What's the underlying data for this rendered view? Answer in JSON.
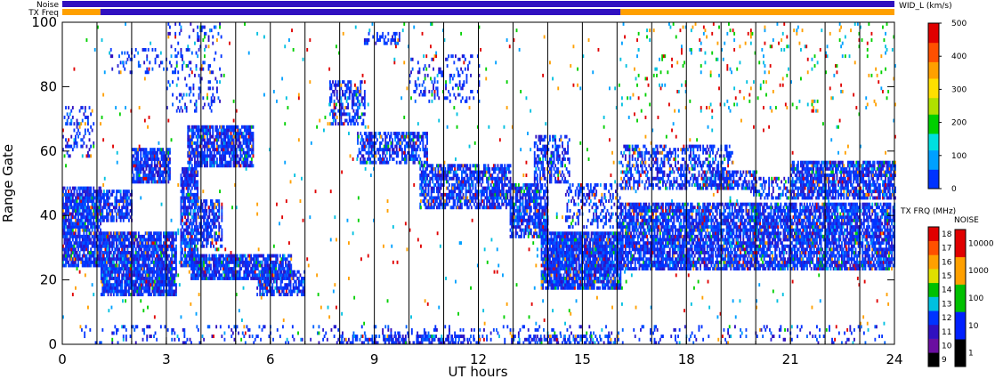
{
  "chart_data": {
    "type": "heatmap",
    "xlabel": "UT hours",
    "ylabel": "Range Gate",
    "xlim": [
      0,
      24
    ],
    "ylim": [
      0,
      100
    ],
    "xticks": [
      "0",
      "3",
      "6",
      "9",
      "12",
      "15",
      "18",
      "21",
      "24"
    ],
    "yticks": [
      "0",
      "20",
      "40",
      "60",
      "80",
      "100"
    ],
    "grid_x_hours": [
      1,
      2,
      3,
      4,
      5,
      6,
      7,
      8,
      9,
      10,
      11,
      12,
      13,
      14,
      15,
      16,
      17,
      18,
      19,
      20,
      21,
      22,
      23
    ],
    "top_bar_labels": {
      "noise": "Noise",
      "freq": "TX Freq"
    },
    "colorbars": {
      "width": {
        "title": "WID_L (km/s)",
        "ticks": [
          "0",
          "100",
          "200",
          "300",
          "400",
          "500"
        ],
        "range": [
          0,
          500
        ],
        "colors": [
          "#0033ff",
          "#00a0ff",
          "#00e0e0",
          "#00d000",
          "#b0e000",
          "#ffe000",
          "#ffa000",
          "#ff5000",
          "#e00000"
        ]
      },
      "freq": {
        "title": "TX FRQ (MHz)",
        "ticks": [
          "9",
          "10",
          "11",
          "12",
          "13",
          "14",
          "15",
          "16",
          "17",
          "18"
        ],
        "colors": [
          "#000000",
          "#6a0ea0",
          "#3010c0",
          "#0033ff",
          "#00c0e0",
          "#00c000",
          "#e0e000",
          "#ffa000",
          "#ff5000",
          "#e00000"
        ]
      },
      "noise": {
        "title": "NOISE",
        "ticks": [
          "1",
          "10",
          "100",
          "1000",
          "10000"
        ],
        "colors": [
          "#000000",
          "#0020ff",
          "#00c000",
          "#ffa000",
          "#e00000"
        ]
      }
    },
    "bands": [
      {
        "t0": 0.0,
        "t1": 1.1,
        "g0": 24,
        "g1": 49,
        "density": 0.85
      },
      {
        "t0": 0.0,
        "t1": 0.9,
        "g0": 58,
        "g1": 74,
        "density": 0.25
      },
      {
        "t0": 1.1,
        "t1": 3.3,
        "g0": 15,
        "g1": 35,
        "density": 0.85
      },
      {
        "t0": 1.1,
        "t1": 2.0,
        "g0": 38,
        "g1": 48,
        "density": 0.7
      },
      {
        "t0": 2.0,
        "t1": 3.1,
        "g0": 50,
        "g1": 61,
        "density": 0.8
      },
      {
        "t0": 1.3,
        "t1": 3.0,
        "g0": 84,
        "g1": 92,
        "density": 0.15
      },
      {
        "t0": 3.4,
        "t1": 3.9,
        "g0": 24,
        "g1": 55,
        "density": 0.8
      },
      {
        "t0": 3.6,
        "t1": 5.5,
        "g0": 55,
        "g1": 68,
        "density": 0.8
      },
      {
        "t0": 3.7,
        "t1": 6.6,
        "g0": 20,
        "g1": 28,
        "density": 0.85
      },
      {
        "t0": 3.9,
        "t1": 4.6,
        "g0": 30,
        "g1": 45,
        "density": 0.6
      },
      {
        "t0": 3.0,
        "t1": 4.6,
        "g0": 72,
        "g1": 100,
        "density": 0.15
      },
      {
        "t0": 5.6,
        "t1": 7.0,
        "g0": 15,
        "g1": 23,
        "density": 0.7
      },
      {
        "t0": 7.7,
        "t1": 8.7,
        "g0": 68,
        "g1": 82,
        "density": 0.45
      },
      {
        "t0": 8.5,
        "t1": 10.5,
        "g0": 56,
        "g1": 66,
        "density": 0.55
      },
      {
        "t0": 10.3,
        "t1": 12.9,
        "g0": 42,
        "g1": 56,
        "density": 0.7
      },
      {
        "t0": 8.7,
        "t1": 9.7,
        "g0": 93,
        "g1": 97,
        "density": 0.4
      },
      {
        "t0": 10.0,
        "t1": 12.0,
        "g0": 75,
        "g1": 90,
        "density": 0.2
      },
      {
        "t0": 12.9,
        "t1": 14.0,
        "g0": 33,
        "g1": 50,
        "density": 0.75
      },
      {
        "t0": 13.8,
        "t1": 16.1,
        "g0": 17,
        "g1": 35,
        "density": 0.9
      },
      {
        "t0": 13.6,
        "t1": 14.6,
        "g0": 50,
        "g1": 65,
        "density": 0.5
      },
      {
        "t0": 14.5,
        "t1": 16.1,
        "g0": 36,
        "g1": 50,
        "density": 0.35
      },
      {
        "t0": 16.1,
        "t1": 24.0,
        "g0": 23,
        "g1": 44,
        "density": 0.78
      },
      {
        "t0": 16.1,
        "t1": 19.3,
        "g0": 48,
        "g1": 62,
        "density": 0.5
      },
      {
        "t0": 18.5,
        "t1": 20.0,
        "g0": 48,
        "g1": 54,
        "density": 0.55
      },
      {
        "t0": 21.0,
        "t1": 24.0,
        "g0": 45,
        "g1": 57,
        "density": 0.75
      },
      {
        "t0": 19.8,
        "t1": 21.5,
        "g0": 45,
        "g1": 52,
        "density": 0.35
      },
      {
        "t0": 0.5,
        "t1": 23.8,
        "g0": 0,
        "g1": 6,
        "density": 0.12
      },
      {
        "t0": 8.0,
        "t1": 12.0,
        "g0": 0,
        "g1": 3,
        "density": 0.55
      },
      {
        "t0": 13.0,
        "t1": 16.0,
        "g0": 0,
        "g1": 3,
        "density": 0.45
      },
      {
        "t0": 16.0,
        "t1": 24.0,
        "g0": 72,
        "g1": 100,
        "density": 0.04
      },
      {
        "t0": 0.0,
        "t1": 24.0,
        "g0": 6,
        "g1": 100,
        "density": 0.012
      }
    ],
    "tx_freq_segments": [
      {
        "t0": 0.0,
        "t1": 1.1,
        "color": "#ffa000"
      },
      {
        "t0": 1.1,
        "t1": 16.1,
        "color": "#3010c0"
      },
      {
        "t0": 16.1,
        "t1": 24.0,
        "color": "#ffa000"
      }
    ],
    "noise_color": "#3010c0"
  }
}
